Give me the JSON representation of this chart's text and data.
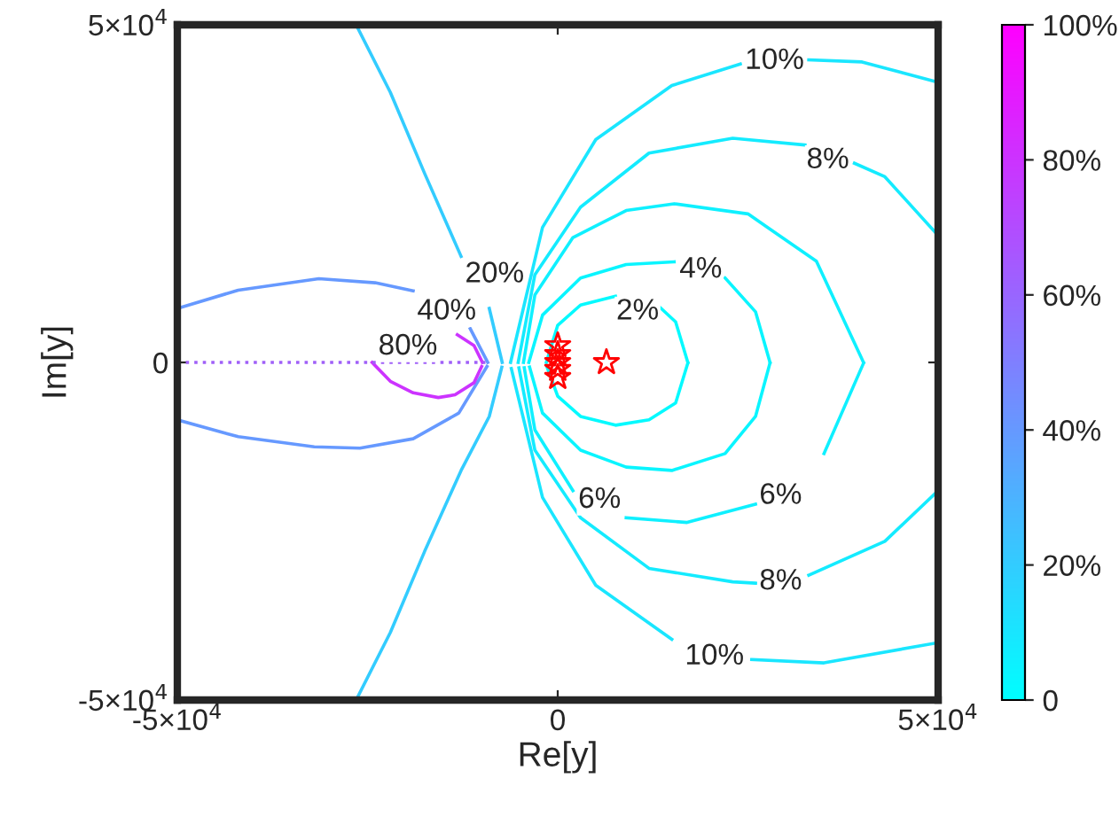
{
  "chart_data": {
    "type": "line",
    "xlabel": "Re[y]",
    "ylabel": "Im[y]",
    "xlim": [
      -50000,
      50000
    ],
    "ylim": [
      -50000,
      50000
    ],
    "xticks": [
      {
        "value": -50000,
        "label": "-5×10$^{4}$"
      },
      0,
      {
        "value": 50000,
        "label": "5×10$^{4}$"
      }
    ],
    "yticks": [
      {
        "value": -50000,
        "label": "-5×10$^{4}$"
      },
      0,
      {
        "value": 50000,
        "label": "5×10$^{4}$"
      }
    ],
    "clim": [
      0,
      100
    ],
    "cticks": [
      0,
      {
        "value": 20,
        "label": "20%"
      },
      {
        "value": 40,
        "label": "40%"
      },
      {
        "value": 60,
        "label": "60%"
      },
      {
        "value": 80,
        "label": "80%"
      },
      {
        "value": 100,
        "label": "100%"
      }
    ],
    "grid": false,
    "legend": false,
    "marker": "none",
    "line_style": "solid",
    "series": [
      {
        "color": "#05faff",
        "x": [
          -1500,
          0,
          3000,
          7600,
          10500,
          13300,
          15500,
          17100
        ],
        "values": [
          0,
          5500,
          8500,
          9800,
          null,
          8300,
          6000,
          0
        ]
      },
      {
        "color": "#05faff",
        "x": [
          -1400,
          0,
          3000,
          7600,
          12000,
          15500,
          17100
        ],
        "values": [
          -700,
          -5000,
          -8000,
          -9300,
          -8500,
          -6000,
          -100
        ]
      },
      {
        "color": "#0af5ff",
        "x": [
          -3800,
          -2000,
          3000,
          9000,
          15300,
          18800,
          22000,
          26000,
          27900
        ],
        "values": [
          0,
          7000,
          12500,
          14500,
          14900,
          null,
          12500,
          7500,
          0
        ]
      },
      {
        "color": "#0af5ff",
        "x": [
          -3700,
          -2000,
          3000,
          9000,
          15000,
          22000,
          26000,
          27900
        ],
        "values": [
          -700,
          -7500,
          -13000,
          -15500,
          -16000,
          -13500,
          -8000,
          -100
        ]
      },
      {
        "color": "#0ff0ff",
        "x": [
          -4500,
          -3000,
          2000,
          9000,
          15300,
          25000,
          34000,
          40200
        ],
        "values": [
          0,
          10000,
          18500,
          22500,
          23500,
          22000,
          15000,
          0
        ]
      },
      {
        "color": "#0ff0ff",
        "x": [
          -4400,
          -3000,
          2000,
          5500,
          9000,
          17000,
          26000,
          29300,
          35000,
          40200
        ],
        "values": [
          -800,
          -10000,
          -19000,
          null,
          -23000,
          -23700,
          -21000,
          null,
          -13500,
          -100
        ]
      },
      {
        "color": "#14ebff",
        "x": [
          -5200,
          -3000,
          3000,
          12000,
          23000,
          32500,
          35500,
          39000,
          43000,
          50000
        ],
        "values": [
          0,
          13000,
          23000,
          31000,
          33200,
          32200,
          null,
          29500,
          27500,
          18800
        ]
      },
      {
        "color": "#14ebff",
        "x": [
          -5100,
          -3000,
          3000,
          12000,
          23000,
          26000,
          29300,
          33000,
          43000,
          50000
        ],
        "values": [
          -800,
          -13000,
          -23000,
          -30500,
          -32500,
          -32700,
          null,
          -31500,
          -26500,
          -19000
        ]
      },
      {
        "color": "#1ae6ff",
        "x": [
          -6200,
          -2000,
          5000,
          15000,
          24000,
          28500,
          33000,
          40000,
          50000
        ],
        "values": [
          0,
          20000,
          33000,
          41000,
          44200,
          null,
          44800,
          44500,
          41500
        ]
      },
      {
        "color": "#1ae6ff",
        "x": [
          -6100,
          -2000,
          5000,
          15000,
          20600,
          25500,
          35000,
          50000
        ],
        "values": [
          -900,
          -20000,
          -33000,
          -41000,
          null,
          -44000,
          -44500,
          -41500
        ]
      },
      {
        "color": "#33ccff",
        "x": [
          -26500,
          -22000,
          -17500,
          -12700,
          -10800,
          -9000,
          -7300
        ],
        "values": [
          50000,
          40000,
          28000,
          15700,
          null,
          8000,
          0
        ]
      },
      {
        "color": "#33ccff",
        "x": [
          -26500,
          -22000,
          -17500,
          -12700,
          -9000,
          -7350
        ],
        "values": [
          -50000,
          -40000,
          -28000,
          -16000,
          -8000,
          -700
        ]
      },
      {
        "color": "#6699ff",
        "x": [
          -50000,
          -42000,
          -31400,
          -24000,
          -19000,
          -14600,
          -11500,
          -9200
        ],
        "values": [
          8000,
          10700,
          12400,
          11800,
          10600,
          null,
          5000,
          0
        ]
      },
      {
        "color": "#6699ff",
        "x": [
          -50000,
          -42000,
          -32000,
          -26000,
          -19000,
          -13000,
          -9300
        ],
        "values": [
          -8500,
          -11000,
          -12500,
          -12700,
          -11300,
          -7500,
          -600
        ]
      },
      {
        "color": "#cc33ff",
        "x": [
          -13200,
          -11000,
          -9900
        ],
        "values": [
          4100,
          2500,
          0
        ]
      },
      {
        "color": "#cc33ff",
        "x": [
          -24400,
          -22000,
          -19000,
          -15700,
          -13500,
          -11000,
          -10000
        ],
        "values": [
          0,
          -2800,
          -4500,
          -5200,
          -4800,
          -3000,
          -600
        ]
      },
      {
        "color": "#a060f8",
        "line_style": "dotted",
        "x": [
          -50000,
          -9500
        ],
        "values": [
          0,
          0
        ]
      },
      {
        "type": "scatter",
        "marker": "star",
        "color": "#ff0000",
        "x": [
          0,
          0,
          0,
          0,
          0,
          6400
        ],
        "values": [
          2500,
          1200,
          0,
          -1000,
          -2200,
          0
        ]
      }
    ],
    "annotations": [
      {
        "text": "2%",
        "x": 10500,
        "y": 7500
      },
      {
        "text": "4%",
        "x": 18800,
        "y": 13700
      },
      {
        "text": "6%",
        "x": 5500,
        "y": -20400
      },
      {
        "text": "6%",
        "x": 29300,
        "y": -19800
      },
      {
        "text": "8%",
        "x": 35500,
        "y": 29900
      },
      {
        "text": "8%",
        "x": 29300,
        "y": -32500
      },
      {
        "text": "10%",
        "x": 28500,
        "y": 44600
      },
      {
        "text": "10%",
        "x": 20600,
        "y": -43600
      },
      {
        "text": "20%",
        "x": -8300,
        "y": 13000
      },
      {
        "text": "40%",
        "x": -14600,
        "y": 7500
      },
      {
        "text": "80%",
        "x": -19700,
        "y": 2300
      }
    ]
  }
}
